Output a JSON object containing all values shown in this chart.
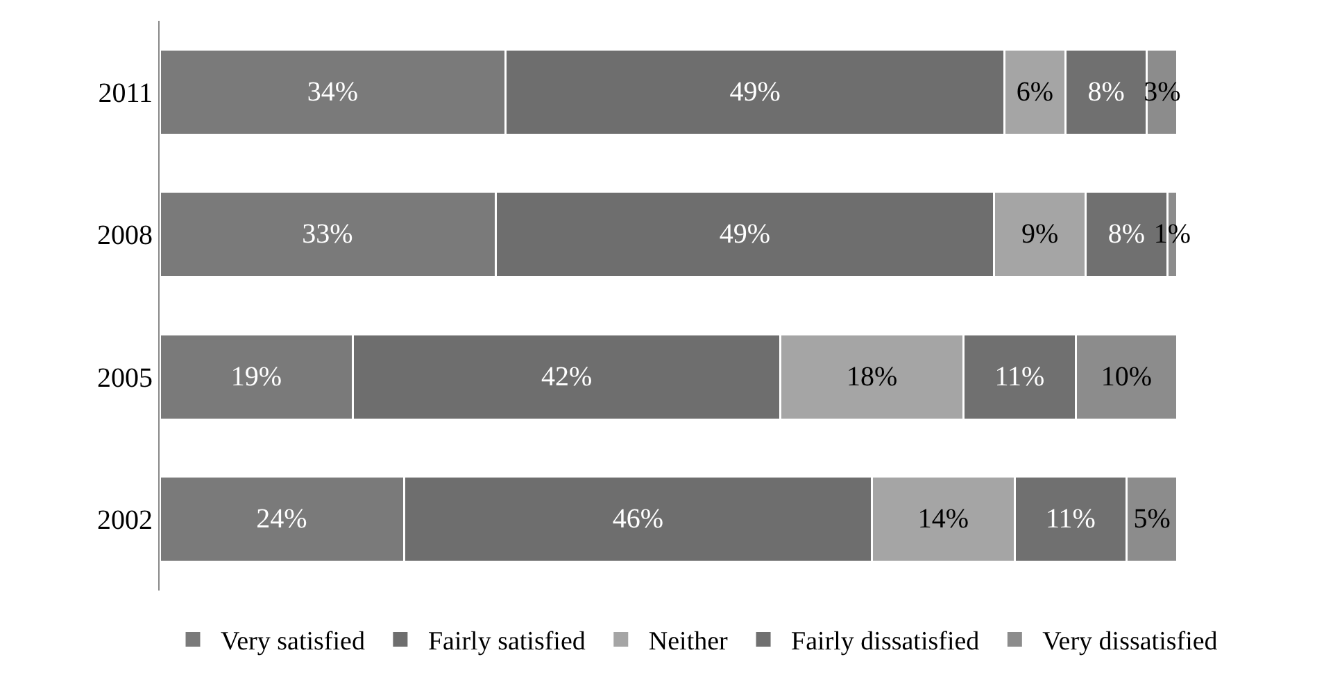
{
  "chart_data": {
    "type": "bar",
    "orientation": "horizontal",
    "stacked": true,
    "categories": [
      "2011",
      "2008",
      "2005",
      "2002"
    ],
    "tick_labels": "y",
    "legend": "bottom",
    "series": [
      {
        "name": "Very satisfied",
        "color": "#7a7a7a",
        "values": [
          34,
          33,
          19,
          24
        ],
        "value_labels": [
          "34%",
          "33%",
          "19%",
          "24%"
        ]
      },
      {
        "name": "Fairly satisfied",
        "color": "#6e6e6e",
        "values": [
          49,
          49,
          42,
          46
        ],
        "value_labels": [
          "49%",
          "49%",
          "42%",
          "46%"
        ]
      },
      {
        "name": "Neither",
        "color": "#a5a5a5",
        "values": [
          6,
          9,
          18,
          14
        ],
        "value_labels": [
          "6%",
          "9%",
          "18%",
          "14%"
        ]
      },
      {
        "name": "Fairly dissatisfied",
        "color": "#707070",
        "values": [
          8,
          8,
          11,
          11
        ],
        "value_labels": [
          "8%",
          "8%",
          "11%",
          "11%"
        ]
      },
      {
        "name": "Very dissatisfied",
        "color": "#8c8c8c",
        "values": [
          3,
          1,
          10,
          5
        ],
        "value_labels": [
          "3%",
          "1%",
          "10%",
          "5%"
        ]
      }
    ]
  }
}
